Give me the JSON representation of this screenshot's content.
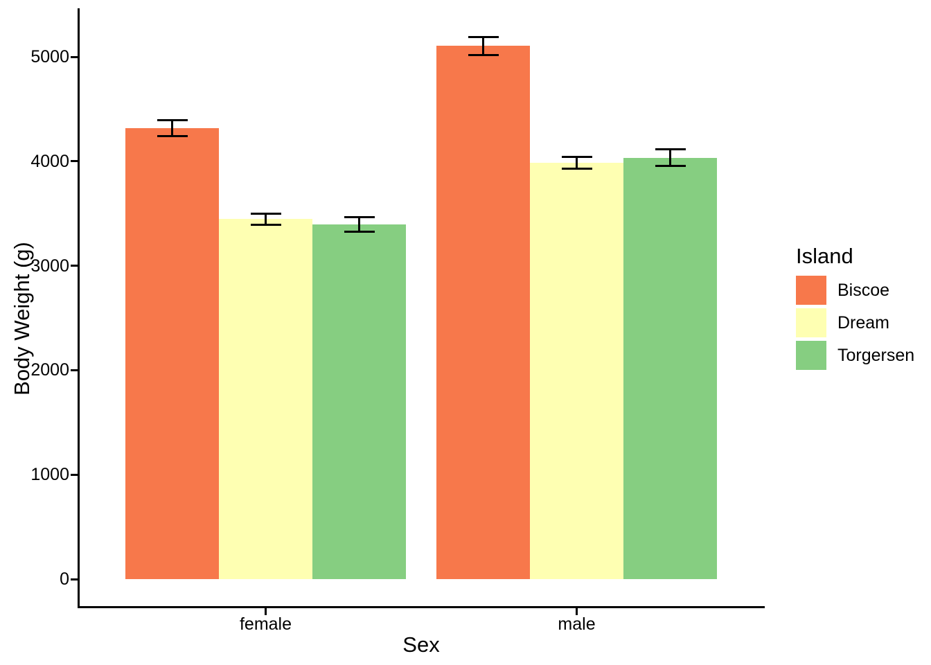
{
  "chart_data": {
    "type": "bar",
    "title": "",
    "xlabel": "Sex",
    "ylabel": "Body Weight (g)",
    "categories": [
      "female",
      "male"
    ],
    "series": [
      {
        "name": "Biscoe",
        "color": "#F7784B",
        "values": [
          4319,
          5105
        ],
        "se": [
          75,
          86
        ]
      },
      {
        "name": "Dream",
        "color": "#FEFFB2",
        "values": [
          3446,
          3987
        ],
        "se": [
          53,
          55
        ]
      },
      {
        "name": "Torgersen",
        "color": "#86CE81",
        "values": [
          3396,
          4035
        ],
        "se": [
          71,
          78
        ]
      }
    ],
    "error_bars": "mean ± standard error",
    "y_ticks": [
      0,
      1000,
      2000,
      3000,
      4000,
      5000
    ],
    "ylim": [
      -260,
      5440
    ],
    "grid": false,
    "legend": {
      "title": "Island",
      "position": "right",
      "entries": [
        "Biscoe",
        "Dream",
        "Torgersen"
      ]
    },
    "axis_color": "#000000",
    "background": "#FFFFFF"
  }
}
